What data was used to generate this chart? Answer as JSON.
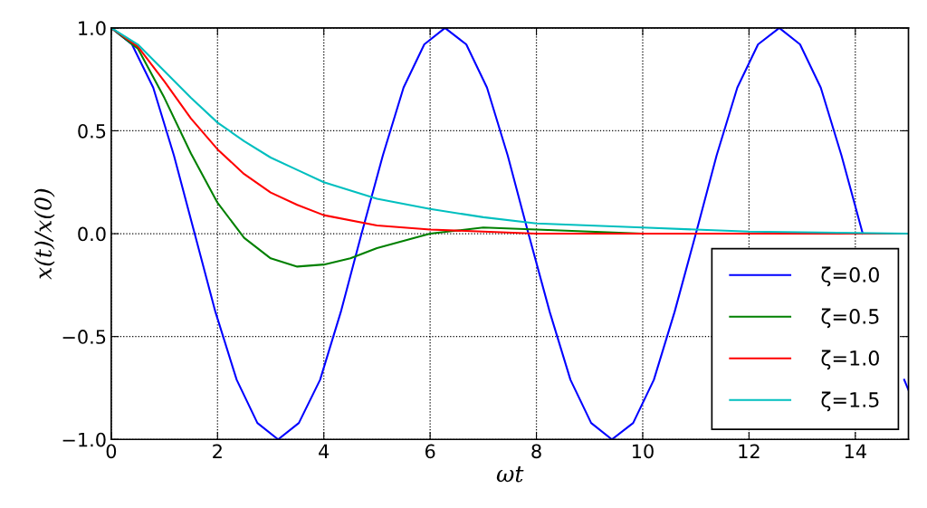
{
  "chart_data": {
    "type": "line",
    "xlabel": "ωt",
    "ylabel": "x(t)/x(0)",
    "xlim": [
      0,
      15
    ],
    "xticks": [
      0,
      2,
      4,
      6,
      8,
      10,
      12,
      14
    ],
    "ylim": [
      -1.0,
      1.0
    ],
    "yticks": [
      {
        "value": -1.0,
        "label": "−1.0"
      },
      {
        "value": -0.5,
        "label": "−0.5"
      },
      {
        "value": 0.0,
        "label": "0.0"
      },
      {
        "value": 0.5,
        "label": "0.5"
      },
      {
        "value": 1.0,
        "label": "1.0"
      }
    ],
    "grid": true,
    "legend": "bottom right",
    "line_style": "solid",
    "marker": "none",
    "series": [
      {
        "name": "ζ=0.0",
        "color": "#0000ff",
        "x": [
          0,
          0.39,
          0.79,
          1.18,
          1.57,
          1.96,
          2.36,
          2.75,
          3.14,
          3.53,
          3.93,
          4.32,
          4.71,
          5.11,
          5.5,
          5.89,
          6.28,
          6.68,
          7.07,
          7.46,
          7.85,
          8.25,
          8.64,
          9.03,
          9.42,
          9.82,
          10.21,
          10.6,
          11.0,
          11.39,
          11.78,
          12.17,
          12.57,
          12.96,
          13.35,
          13.74,
          14.14,
          14.53,
          14.92,
          15
        ],
        "values": [
          1,
          0.92,
          0.71,
          0.38,
          0,
          -0.38,
          -0.71,
          -0.92,
          -1,
          -0.92,
          -0.71,
          -0.38,
          0,
          0.38,
          0.71,
          0.92,
          1,
          0.92,
          0.71,
          0.38,
          0,
          -0.38,
          -0.71,
          -0.92,
          -1,
          -0.92,
          -0.71,
          -0.38,
          0,
          0.38,
          0.71,
          0.92,
          1,
          0.92,
          0.71,
          0.38,
          0,
          null,
          -0.71,
          -0.76
        ]
      },
      {
        "name": "ζ=0.5",
        "color": "#008000",
        "x": [
          0,
          0.5,
          1,
          1.5,
          2,
          2.5,
          3,
          3.5,
          4,
          4.5,
          5,
          6,
          7,
          8,
          9,
          10,
          12,
          15
        ],
        "values": [
          1,
          0.9,
          0.66,
          0.39,
          0.15,
          -0.02,
          -0.12,
          -0.16,
          -0.15,
          -0.12,
          -0.07,
          0.0,
          0.03,
          0.02,
          0.01,
          0.0,
          0.0,
          0.0
        ]
      },
      {
        "name": "ζ=1.0",
        "color": "#ff0000",
        "x": [
          0,
          0.5,
          1,
          1.5,
          2,
          2.5,
          3,
          3.5,
          4,
          5,
          6,
          7,
          8,
          10,
          15
        ],
        "values": [
          1,
          0.91,
          0.74,
          0.56,
          0.41,
          0.29,
          0.2,
          0.14,
          0.09,
          0.04,
          0.02,
          0.01,
          0.0,
          0.0,
          0.0
        ]
      },
      {
        "name": "ζ=1.5",
        "color": "#00bfbf",
        "x": [
          0,
          0.5,
          1,
          1.5,
          2,
          2.5,
          3,
          3.5,
          4,
          5,
          6,
          7,
          8,
          10,
          12,
          15
        ],
        "values": [
          1,
          0.92,
          0.79,
          0.66,
          0.54,
          0.45,
          0.37,
          0.31,
          0.25,
          0.17,
          0.12,
          0.08,
          0.05,
          0.03,
          0.01,
          0.0
        ]
      }
    ]
  }
}
